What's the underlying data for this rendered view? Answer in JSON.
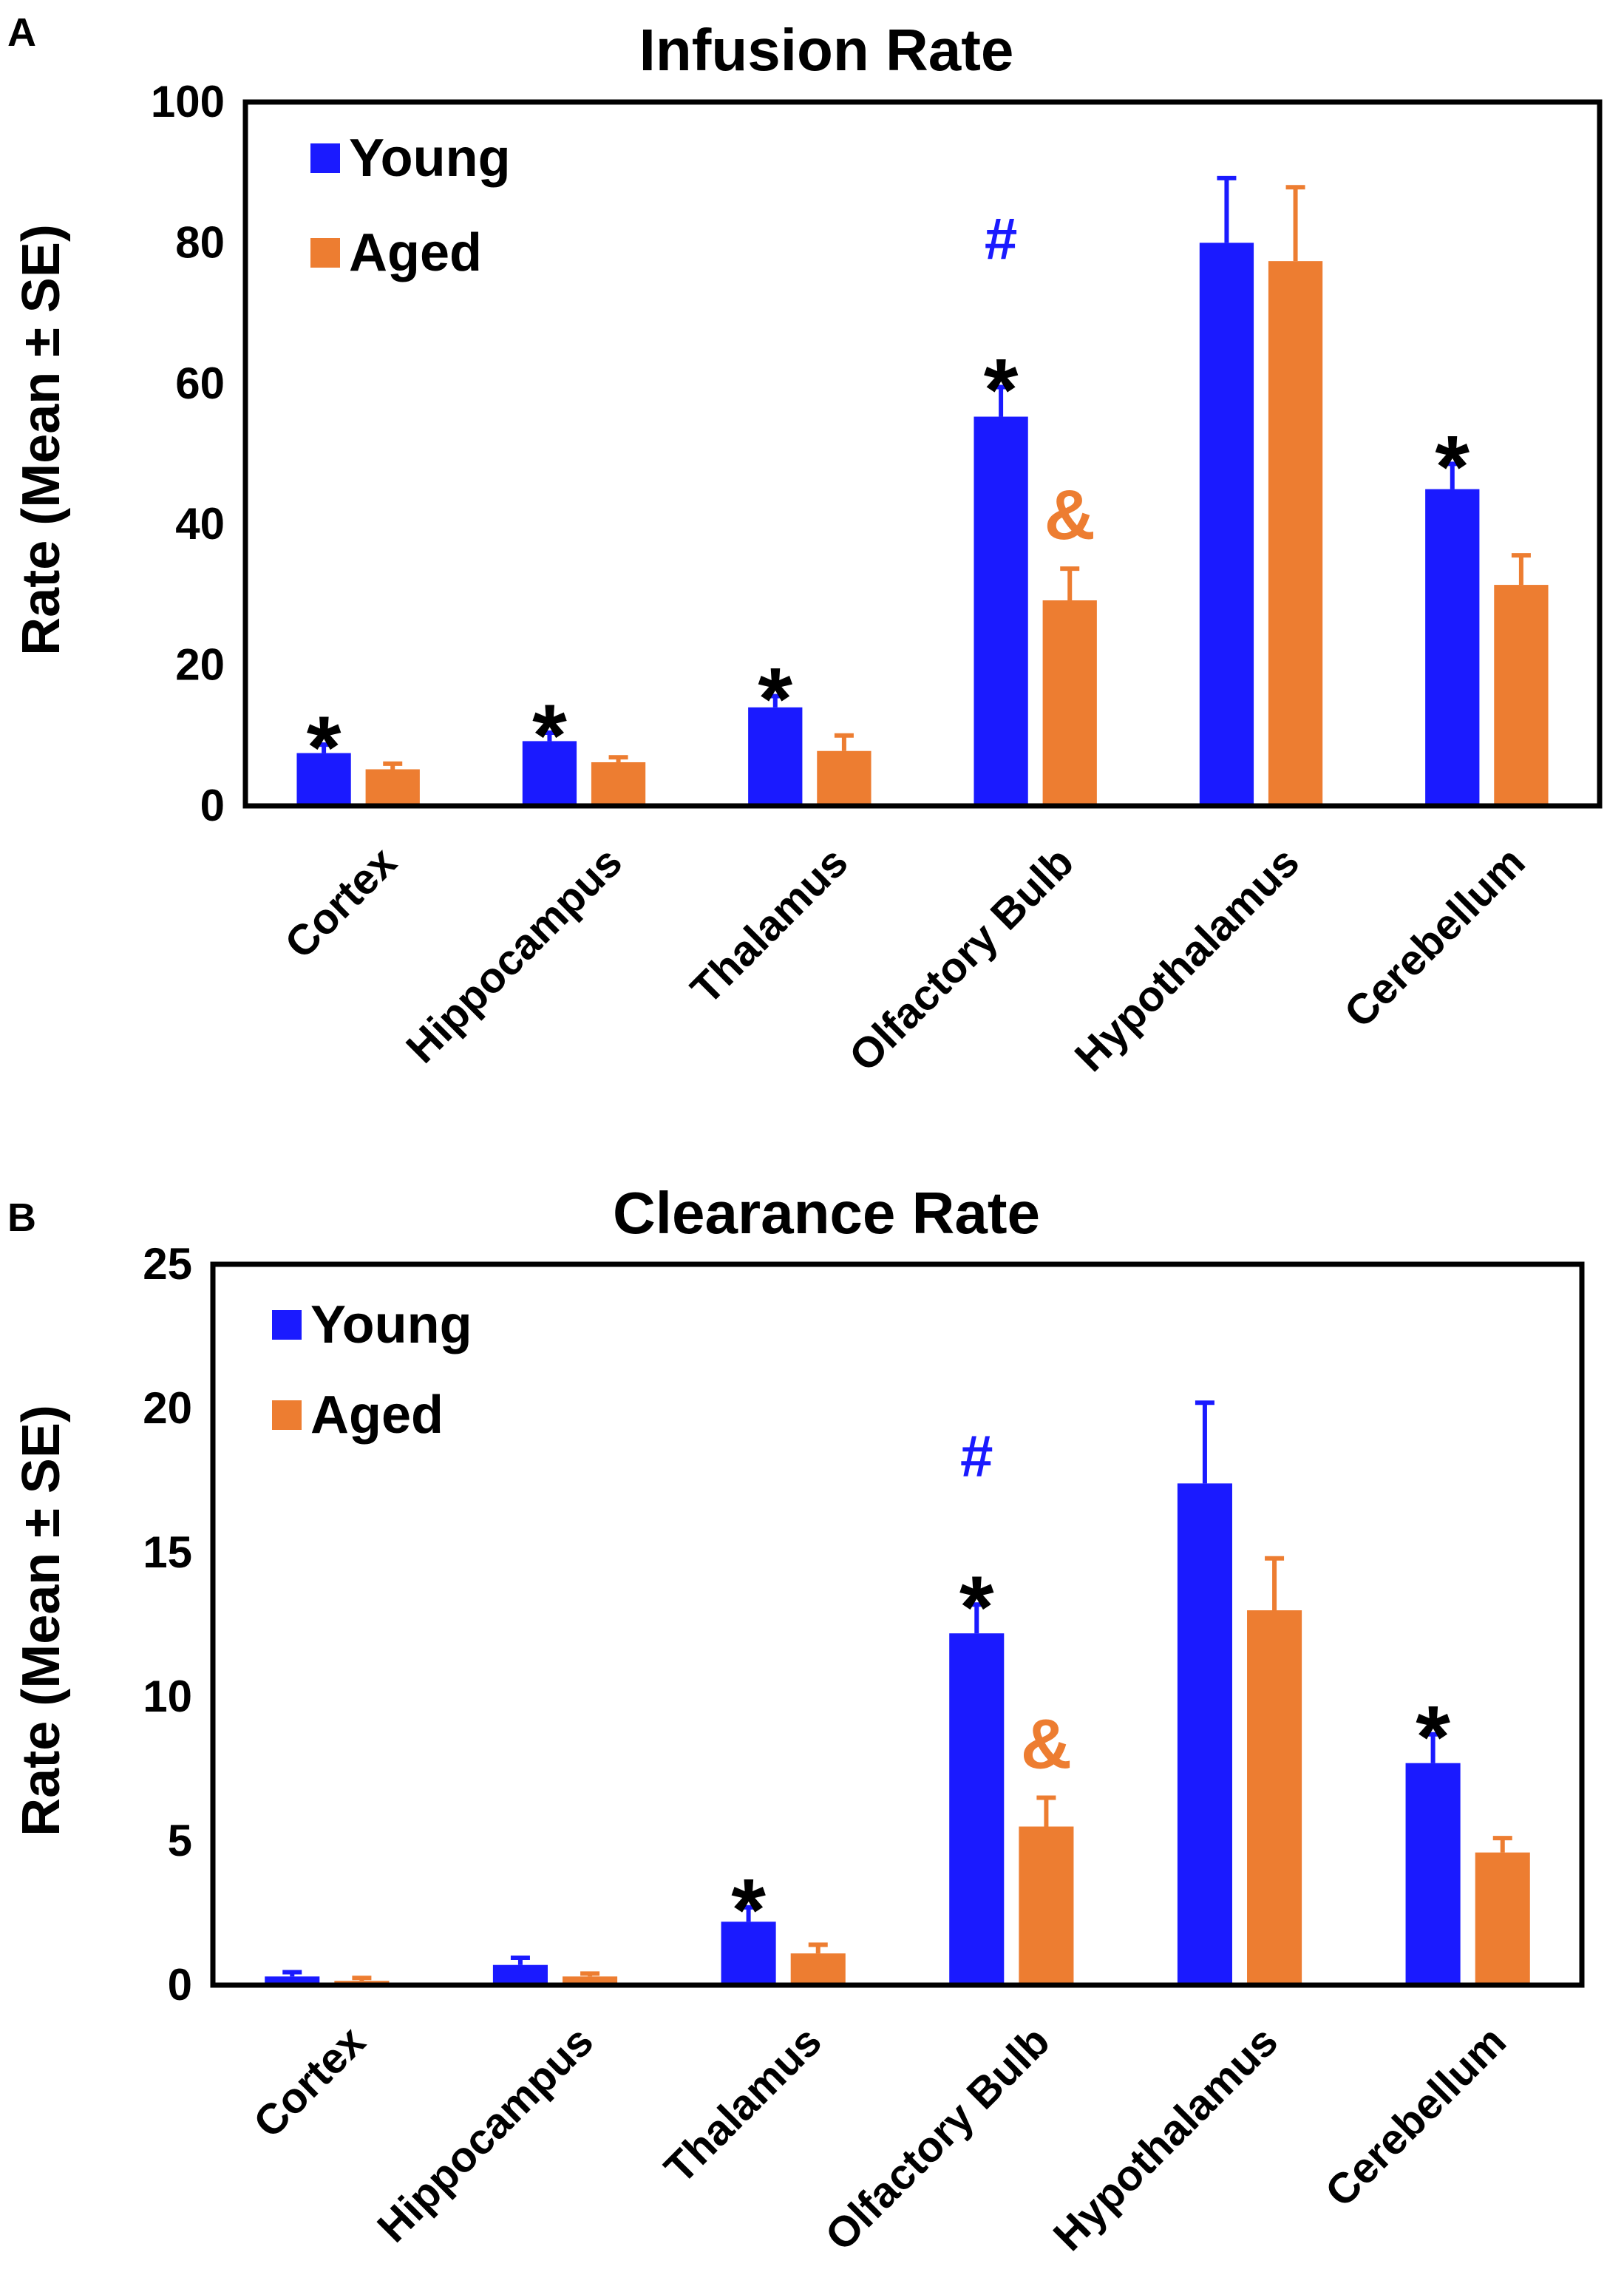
{
  "colors": {
    "young": "#1a1aff",
    "aged": "#ed7d31",
    "star": "#000000",
    "hash": "#1a1aff",
    "amp": "#ed7d31"
  },
  "chart_data": [
    {
      "panel_label": "A",
      "type": "bar",
      "title": "Infusion Rate",
      "ylabel": "Rate (Mean ± SE)",
      "xlabel": "",
      "ylim": [
        0,
        100
      ],
      "yticks": [
        "0",
        "20",
        "40",
        "60",
        "80",
        "100"
      ],
      "categories": [
        "Cortex",
        "Hippocampus",
        "Thalamus",
        "Olfactory Bulb",
        "Hypothalamus",
        "Cerebellum"
      ],
      "legend": {
        "placement": "top-left",
        "entries": [
          "Young",
          "Aged"
        ]
      },
      "series": [
        {
          "name": "Young",
          "values": [
            7.5,
            9.2,
            14,
            55.3,
            80,
            45
          ],
          "errors": [
            1.2,
            1.2,
            1.6,
            4.2,
            9.2,
            3.6
          ]
        },
        {
          "name": "Aged",
          "values": [
            5.2,
            6.2,
            7.8,
            29.2,
            77.4,
            31.4
          ],
          "errors": [
            0.8,
            0.7,
            2.2,
            4.5,
            10.5,
            4.2
          ]
        }
      ],
      "annotations": [
        {
          "category": "Cortex",
          "series": "Young",
          "text": "*",
          "kind": "star"
        },
        {
          "category": "Hippocampus",
          "series": "Young",
          "text": "*",
          "kind": "star"
        },
        {
          "category": "Thalamus",
          "series": "Young",
          "text": "*",
          "kind": "star"
        },
        {
          "category": "Olfactory Bulb",
          "series": "Young",
          "text": "*",
          "kind": "star"
        },
        {
          "category": "Olfactory Bulb",
          "series": "Young",
          "text": "#",
          "kind": "hash"
        },
        {
          "category": "Olfactory Bulb",
          "series": "Aged",
          "text": "&",
          "kind": "amp"
        },
        {
          "category": "Cerebellum",
          "series": "Young",
          "text": "*",
          "kind": "star"
        }
      ]
    },
    {
      "panel_label": "B",
      "type": "bar",
      "title": "Clearance Rate",
      "ylabel": "Rate (Mean ± SE)",
      "xlabel": "",
      "ylim": [
        0,
        25
      ],
      "yticks": [
        "0",
        "5",
        "10",
        "15",
        "20",
        "25"
      ],
      "categories": [
        "Cortex",
        "Hippocampus",
        "Thalamus",
        "Olfactory Bulb",
        "Hypothalamus",
        "Cerebellum"
      ],
      "legend": {
        "placement": "top-left",
        "entries": [
          "Young",
          "Aged"
        ]
      },
      "series": [
        {
          "name": "Young",
          "values": [
            0.3,
            0.7,
            2.2,
            12.2,
            17.4,
            7.7
          ],
          "errors": [
            0.15,
            0.25,
            0.5,
            1.0,
            2.8,
            1.0
          ]
        },
        {
          "name": "Aged",
          "values": [
            0.15,
            0.3,
            1.1,
            5.5,
            13,
            4.6
          ],
          "errors": [
            0.1,
            0.1,
            0.3,
            1.0,
            1.8,
            0.5
          ]
        }
      ],
      "annotations": [
        {
          "category": "Thalamus",
          "series": "Young",
          "text": "*",
          "kind": "star"
        },
        {
          "category": "Olfactory Bulb",
          "series": "Young",
          "text": "*",
          "kind": "star"
        },
        {
          "category": "Olfactory Bulb",
          "series": "Young",
          "text": "#",
          "kind": "hash"
        },
        {
          "category": "Olfactory Bulb",
          "series": "Aged",
          "text": "&",
          "kind": "amp"
        },
        {
          "category": "Cerebellum",
          "series": "Young",
          "text": "*",
          "kind": "star"
        }
      ]
    }
  ]
}
